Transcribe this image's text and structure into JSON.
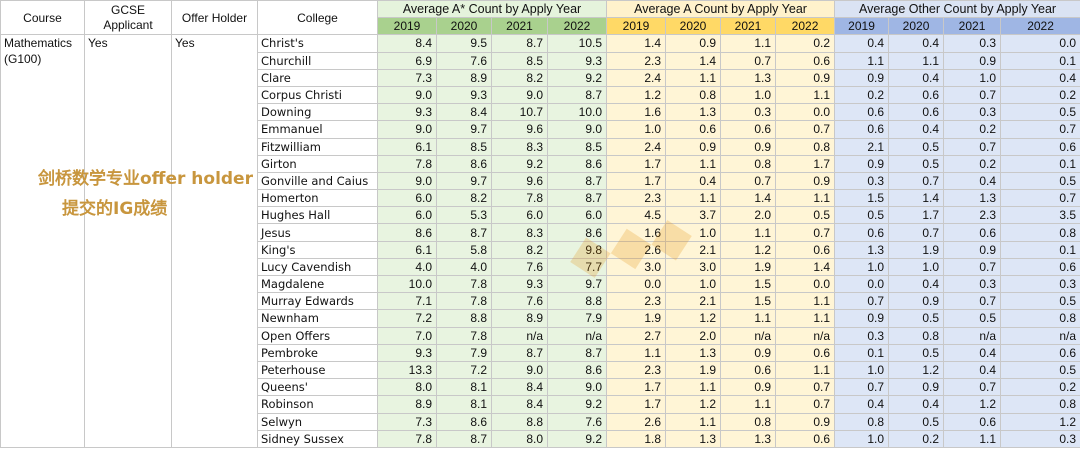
{
  "headers": {
    "course": "Course",
    "gcse": "GCSE Applicant",
    "offer": "Offer Holder",
    "college": "College",
    "group_a_star": "Average A* Count by Apply Year",
    "group_a": "Average A Count by Apply Year",
    "group_other": "Average Other Count by Apply Year",
    "years": [
      "2019",
      "2020",
      "2021",
      "2022"
    ]
  },
  "course": {
    "name": "Mathematics (G100)",
    "gcse_applicant": "Yes",
    "offer_holder": "Yes"
  },
  "overlay_text": {
    "line1": "剑桥数学专业offer holder",
    "line2": "提交的IG成绩"
  },
  "colors": {
    "a_star_year_header": "#a9d18e",
    "a_year_header": "#ffd966",
    "other_year_header": "#9fb6e4"
  },
  "rows": [
    {
      "college": "Christ's",
      "astar": [
        "8.4",
        "9.5",
        "8.7",
        "10.5"
      ],
      "a": [
        "1.4",
        "0.9",
        "1.1",
        "0.2"
      ],
      "other": [
        "0.4",
        "0.4",
        "0.3",
        "0.0"
      ]
    },
    {
      "college": "Churchill",
      "astar": [
        "6.9",
        "7.6",
        "8.5",
        "9.3"
      ],
      "a": [
        "2.3",
        "1.4",
        "0.7",
        "0.6"
      ],
      "other": [
        "1.1",
        "1.1",
        "0.9",
        "0.1"
      ]
    },
    {
      "college": "Clare",
      "astar": [
        "7.3",
        "8.9",
        "8.2",
        "9.2"
      ],
      "a": [
        "2.4",
        "1.1",
        "1.3",
        "0.9"
      ],
      "other": [
        "0.9",
        "0.4",
        "1.0",
        "0.4"
      ]
    },
    {
      "college": "Corpus Christi",
      "astar": [
        "9.0",
        "9.3",
        "9.0",
        "8.7"
      ],
      "a": [
        "1.2",
        "0.8",
        "1.0",
        "1.1"
      ],
      "other": [
        "0.2",
        "0.6",
        "0.7",
        "0.2"
      ]
    },
    {
      "college": "Downing",
      "astar": [
        "9.3",
        "8.4",
        "10.7",
        "10.0"
      ],
      "a": [
        "1.6",
        "1.3",
        "0.3",
        "0.0"
      ],
      "other": [
        "0.6",
        "0.6",
        "0.3",
        "0.5"
      ]
    },
    {
      "college": "Emmanuel",
      "astar": [
        "9.0",
        "9.7",
        "9.6",
        "9.0"
      ],
      "a": [
        "1.0",
        "0.6",
        "0.6",
        "0.7"
      ],
      "other": [
        "0.6",
        "0.4",
        "0.2",
        "0.7"
      ]
    },
    {
      "college": "Fitzwilliam",
      "astar": [
        "6.1",
        "8.5",
        "8.3",
        "8.5"
      ],
      "a": [
        "2.4",
        "0.9",
        "0.9",
        "0.8"
      ],
      "other": [
        "2.1",
        "0.5",
        "0.7",
        "0.6"
      ]
    },
    {
      "college": "Girton",
      "astar": [
        "7.8",
        "8.6",
        "9.2",
        "8.6"
      ],
      "a": [
        "1.7",
        "1.1",
        "0.8",
        "1.7"
      ],
      "other": [
        "0.9",
        "0.5",
        "0.2",
        "0.1"
      ]
    },
    {
      "college": "Gonville and Caius",
      "astar": [
        "9.0",
        "9.7",
        "9.6",
        "8.7"
      ],
      "a": [
        "1.7",
        "0.4",
        "0.7",
        "0.9"
      ],
      "other": [
        "0.3",
        "0.7",
        "0.4",
        "0.5"
      ]
    },
    {
      "college": "Homerton",
      "astar": [
        "6.0",
        "8.2",
        "7.8",
        "8.7"
      ],
      "a": [
        "2.3",
        "1.1",
        "1.4",
        "1.1"
      ],
      "other": [
        "1.5",
        "1.4",
        "1.3",
        "0.7"
      ]
    },
    {
      "college": "Hughes Hall",
      "astar": [
        "6.0",
        "5.3",
        "6.0",
        "6.0"
      ],
      "a": [
        "4.5",
        "3.7",
        "2.0",
        "0.5"
      ],
      "other": [
        "0.5",
        "1.7",
        "2.3",
        "3.5"
      ]
    },
    {
      "college": "Jesus",
      "astar": [
        "8.6",
        "8.7",
        "8.3",
        "8.6"
      ],
      "a": [
        "1.6",
        "1.0",
        "1.1",
        "0.7"
      ],
      "other": [
        "0.6",
        "0.7",
        "0.6",
        "0.8"
      ]
    },
    {
      "college": "King's",
      "astar": [
        "6.1",
        "5.8",
        "8.2",
        "9.8"
      ],
      "a": [
        "2.6",
        "2.1",
        "1.2",
        "0.6"
      ],
      "other": [
        "1.3",
        "1.9",
        "0.9",
        "0.1"
      ]
    },
    {
      "college": "Lucy Cavendish",
      "astar": [
        "4.0",
        "4.0",
        "7.6",
        "7.7"
      ],
      "a": [
        "3.0",
        "3.0",
        "1.9",
        "1.4"
      ],
      "other": [
        "1.0",
        "1.0",
        "0.7",
        "0.6"
      ]
    },
    {
      "college": "Magdalene",
      "astar": [
        "10.0",
        "7.8",
        "9.3",
        "9.7"
      ],
      "a": [
        "0.0",
        "1.0",
        "1.5",
        "0.0"
      ],
      "other": [
        "0.0",
        "0.4",
        "0.3",
        "0.3"
      ]
    },
    {
      "college": "Murray Edwards",
      "astar": [
        "7.1",
        "7.8",
        "7.6",
        "8.8"
      ],
      "a": [
        "2.3",
        "2.1",
        "1.5",
        "1.1"
      ],
      "other": [
        "0.7",
        "0.9",
        "0.7",
        "0.5"
      ]
    },
    {
      "college": "Newnham",
      "astar": [
        "7.2",
        "8.8",
        "8.9",
        "7.9"
      ],
      "a": [
        "1.9",
        "1.2",
        "1.1",
        "1.1"
      ],
      "other": [
        "0.9",
        "0.5",
        "0.5",
        "0.8"
      ]
    },
    {
      "college": "Open Offers",
      "astar": [
        "7.0",
        "7.8",
        "n/a",
        "n/a"
      ],
      "a": [
        "2.7",
        "2.0",
        "n/a",
        "n/a"
      ],
      "other": [
        "0.3",
        "0.8",
        "n/a",
        "n/a"
      ]
    },
    {
      "college": "Pembroke",
      "astar": [
        "9.3",
        "7.9",
        "8.7",
        "8.7"
      ],
      "a": [
        "1.1",
        "1.3",
        "0.9",
        "0.6"
      ],
      "other": [
        "0.1",
        "0.5",
        "0.4",
        "0.6"
      ]
    },
    {
      "college": "Peterhouse",
      "astar": [
        "13.3",
        "7.2",
        "9.0",
        "8.6"
      ],
      "a": [
        "2.3",
        "1.9",
        "0.6",
        "1.1"
      ],
      "other": [
        "1.0",
        "1.2",
        "0.4",
        "0.5"
      ]
    },
    {
      "college": "Queens'",
      "astar": [
        "8.0",
        "8.1",
        "8.4",
        "9.0"
      ],
      "a": [
        "1.7",
        "1.1",
        "0.9",
        "0.7"
      ],
      "other": [
        "0.7",
        "0.9",
        "0.7",
        "0.2"
      ]
    },
    {
      "college": "Robinson",
      "astar": [
        "8.9",
        "8.1",
        "8.4",
        "9.2"
      ],
      "a": [
        "1.7",
        "1.2",
        "1.1",
        "0.7"
      ],
      "other": [
        "0.4",
        "0.4",
        "1.2",
        "0.8"
      ]
    },
    {
      "college": "Selwyn",
      "astar": [
        "7.3",
        "8.6",
        "8.8",
        "7.6"
      ],
      "a": [
        "2.6",
        "1.1",
        "0.8",
        "0.9"
      ],
      "other": [
        "0.8",
        "0.5",
        "0.6",
        "1.2"
      ]
    },
    {
      "college": "Sidney Sussex",
      "astar": [
        "7.8",
        "8.7",
        "8.0",
        "9.2"
      ],
      "a": [
        "1.8",
        "1.3",
        "1.3",
        "0.6"
      ],
      "other": [
        "1.0",
        "0.2",
        "1.1",
        "0.3"
      ]
    }
  ]
}
